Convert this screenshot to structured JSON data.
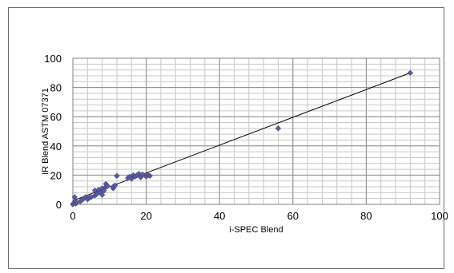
{
  "chart_data": {
    "type": "scatter",
    "title": "",
    "xlabel": "i-SPEC Blend",
    "ylabel": "IR Blend ASTM 07371",
    "xlim": [
      0,
      100
    ],
    "ylim": [
      0,
      100
    ],
    "x_ticks": [
      "0",
      "20",
      "40",
      "60",
      "80",
      "100"
    ],
    "y_ticks": [
      "0",
      "20",
      "40",
      "60",
      "80",
      "100"
    ],
    "grid": {
      "major": true,
      "minor": true
    },
    "legend": "none",
    "marker_color": "#5b5e9e",
    "trendline": {
      "type": "linear",
      "color": "#000000",
      "x": [
        0,
        92
      ],
      "y": [
        2.5,
        90
      ]
    },
    "series": [
      {
        "points": [
          [
            0,
            0
          ],
          [
            0.3,
            1
          ],
          [
            0.5,
            5
          ],
          [
            0.8,
            0.5
          ],
          [
            1,
            1.5
          ],
          [
            2,
            2
          ],
          [
            2.5,
            3
          ],
          [
            3,
            4
          ],
          [
            3.5,
            5
          ],
          [
            4,
            3.5
          ],
          [
            4.5,
            4.5
          ],
          [
            5,
            5
          ],
          [
            6,
            6
          ],
          [
            6,
            9.5
          ],
          [
            6.5,
            7
          ],
          [
            7,
            10
          ],
          [
            7.5,
            8
          ],
          [
            8,
            11
          ],
          [
            8,
            6.5
          ],
          [
            8.5,
            9.5
          ],
          [
            9,
            12
          ],
          [
            9,
            14
          ],
          [
            9.5,
            12.5
          ],
          [
            11,
            11
          ],
          [
            11,
            12
          ],
          [
            11.5,
            13
          ],
          [
            12,
            19.5
          ],
          [
            15,
            18
          ],
          [
            15.5,
            19
          ],
          [
            16,
            17.5
          ],
          [
            16.5,
            20
          ],
          [
            17,
            19
          ],
          [
            17.5,
            20
          ],
          [
            18,
            21
          ],
          [
            18.5,
            18.5
          ],
          [
            19,
            20.5
          ],
          [
            20,
            19
          ],
          [
            20.5,
            20
          ],
          [
            21,
            19.5
          ],
          [
            56,
            52
          ],
          [
            92,
            90
          ]
        ]
      }
    ]
  }
}
